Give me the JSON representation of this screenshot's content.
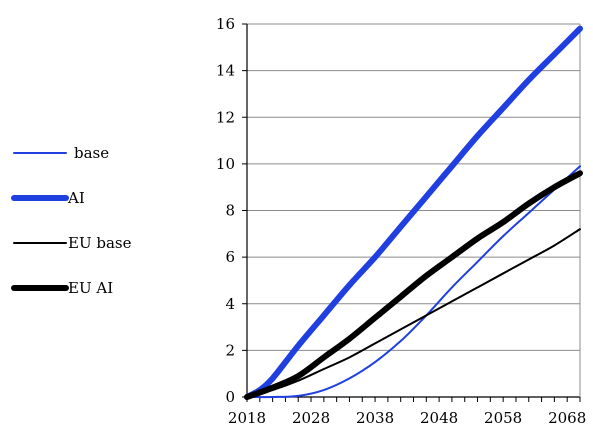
{
  "chart_data": {
    "type": "line",
    "title": "",
    "xlabel": "",
    "ylabel": "",
    "xlim": [
      2018,
      2070
    ],
    "ylim": [
      0,
      16
    ],
    "x_ticks": [
      2018,
      2028,
      2038,
      2048,
      2058,
      2068
    ],
    "y_ticks": [
      0,
      2,
      4,
      6,
      8,
      10,
      12,
      14,
      16
    ],
    "grid": "horizontal",
    "legend_position": "left",
    "series": [
      {
        "name": "base",
        "color": "#1f3fe0",
        "weight": "thin",
        "x": [
          2018,
          2022,
          2026,
          2030,
          2034,
          2038,
          2042,
          2046,
          2050,
          2054,
          2058,
          2062,
          2066,
          2070
        ],
        "values": [
          0,
          0,
          0.05,
          0.3,
          0.8,
          1.5,
          2.4,
          3.5,
          4.7,
          5.8,
          6.9,
          7.9,
          8.9,
          9.9
        ]
      },
      {
        "name": "AI",
        "color": "#1f3fe0",
        "weight": "thick",
        "x": [
          2018,
          2020,
          2022,
          2026,
          2030,
          2034,
          2038,
          2042,
          2046,
          2050,
          2054,
          2058,
          2062,
          2066,
          2070
        ],
        "values": [
          0,
          0.3,
          0.8,
          2.2,
          3.5,
          4.8,
          6.0,
          7.3,
          8.6,
          9.9,
          11.2,
          12.4,
          13.6,
          14.7,
          15.8
        ]
      },
      {
        "name": "EU base",
        "color": "#000000",
        "weight": "thin",
        "x": [
          2018,
          2022,
          2026,
          2030,
          2034,
          2038,
          2042,
          2046,
          2050,
          2054,
          2058,
          2062,
          2066,
          2070
        ],
        "values": [
          0,
          0.3,
          0.7,
          1.2,
          1.7,
          2.3,
          2.9,
          3.5,
          4.1,
          4.7,
          5.3,
          5.9,
          6.5,
          7.2
        ]
      },
      {
        "name": "EU AI",
        "color": "#000000",
        "weight": "thick",
        "x": [
          2018,
          2022,
          2026,
          2030,
          2034,
          2038,
          2042,
          2046,
          2050,
          2054,
          2058,
          2062,
          2066,
          2070
        ],
        "values": [
          0,
          0.4,
          0.9,
          1.7,
          2.5,
          3.4,
          4.3,
          5.2,
          6.0,
          6.8,
          7.5,
          8.3,
          9.0,
          9.6
        ]
      }
    ]
  }
}
